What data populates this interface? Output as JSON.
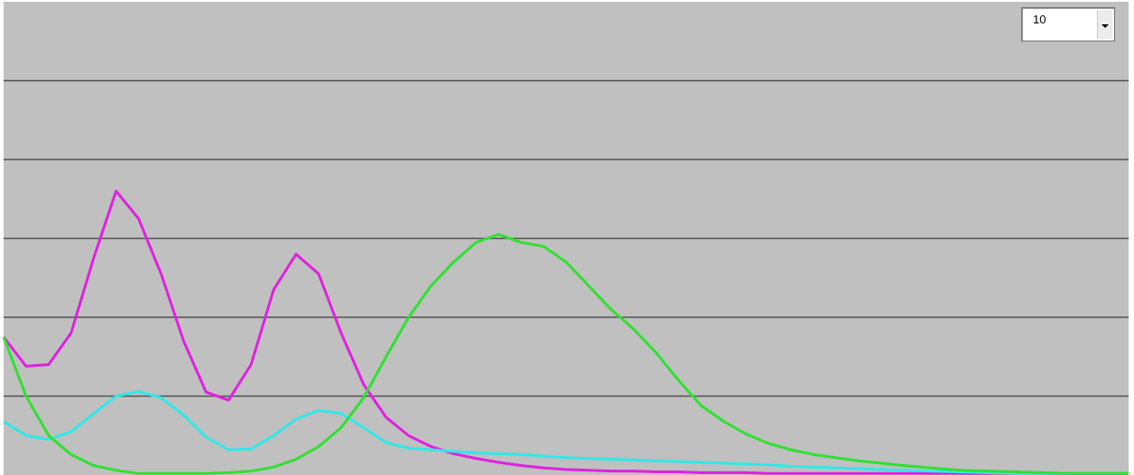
{
  "colors": {
    "background": "#c0c0c0",
    "gridline": "#505050"
  },
  "scale_selector": {
    "value": "10",
    "icon": "chevron-down-icon"
  },
  "chart_data": {
    "type": "line",
    "xlim": [
      0,
      1000
    ],
    "ylim": [
      0,
      6
    ],
    "grid": true,
    "legend": "none",
    "yticks": [
      1,
      2,
      3,
      4,
      5
    ],
    "series": [
      {
        "color": "#e020e0",
        "x": [
          0,
          20,
          40,
          60,
          80,
          100,
          120,
          140,
          160,
          180,
          200,
          220,
          240,
          260,
          280,
          300,
          320,
          340,
          360,
          380,
          400,
          420,
          440,
          460,
          480,
          500,
          520,
          540,
          560,
          580,
          600,
          620,
          640,
          660,
          680,
          700,
          720,
          760,
          800,
          850,
          900,
          950,
          1000
        ],
        "y": [
          1.75,
          1.38,
          1.4,
          1.8,
          2.75,
          3.6,
          3.25,
          2.55,
          1.7,
          1.05,
          0.95,
          1.4,
          2.35,
          2.8,
          2.55,
          1.8,
          1.15,
          0.73,
          0.5,
          0.36,
          0.27,
          0.21,
          0.16,
          0.12,
          0.09,
          0.07,
          0.06,
          0.05,
          0.05,
          0.04,
          0.04,
          0.03,
          0.03,
          0.03,
          0.02,
          0.02,
          0.02,
          0.02,
          0.02,
          0.02,
          0.02,
          0.02,
          0.02
        ]
      },
      {
        "color": "#30e8e8",
        "x": [
          0,
          20,
          40,
          60,
          80,
          100,
          120,
          140,
          160,
          180,
          200,
          220,
          240,
          260,
          280,
          300,
          320,
          340,
          360,
          380,
          400,
          420,
          440,
          460,
          480,
          500,
          520,
          540,
          560,
          580,
          600,
          620,
          640,
          660,
          680,
          700,
          720,
          760,
          800,
          850,
          900,
          950,
          1000
        ],
        "y": [
          0.68,
          0.5,
          0.45,
          0.55,
          0.78,
          1.0,
          1.06,
          0.98,
          0.76,
          0.48,
          0.32,
          0.33,
          0.5,
          0.71,
          0.82,
          0.78,
          0.6,
          0.41,
          0.34,
          0.32,
          0.3,
          0.28,
          0.27,
          0.26,
          0.24,
          0.22,
          0.21,
          0.2,
          0.19,
          0.18,
          0.17,
          0.16,
          0.15,
          0.14,
          0.13,
          0.11,
          0.1,
          0.08,
          0.06,
          0.04,
          0.02,
          0.02,
          0.02
        ]
      },
      {
        "color": "#30e030",
        "x": [
          0,
          20,
          40,
          60,
          80,
          100,
          120,
          140,
          160,
          180,
          200,
          220,
          240,
          260,
          280,
          300,
          320,
          340,
          360,
          380,
          400,
          420,
          440,
          460,
          480,
          500,
          520,
          540,
          560,
          580,
          600,
          620,
          640,
          660,
          680,
          700,
          720,
          760,
          800,
          850,
          900,
          950,
          1000
        ],
        "y": [
          1.75,
          1.0,
          0.5,
          0.26,
          0.12,
          0.06,
          0.02,
          0.02,
          0.02,
          0.02,
          0.03,
          0.05,
          0.1,
          0.2,
          0.36,
          0.6,
          0.98,
          1.5,
          2.0,
          2.4,
          2.7,
          2.95,
          3.05,
          2.95,
          2.9,
          2.7,
          2.4,
          2.1,
          1.85,
          1.55,
          1.2,
          0.88,
          0.68,
          0.52,
          0.4,
          0.32,
          0.26,
          0.18,
          0.12,
          0.06,
          0.04,
          0.02,
          0.02
        ]
      }
    ]
  }
}
